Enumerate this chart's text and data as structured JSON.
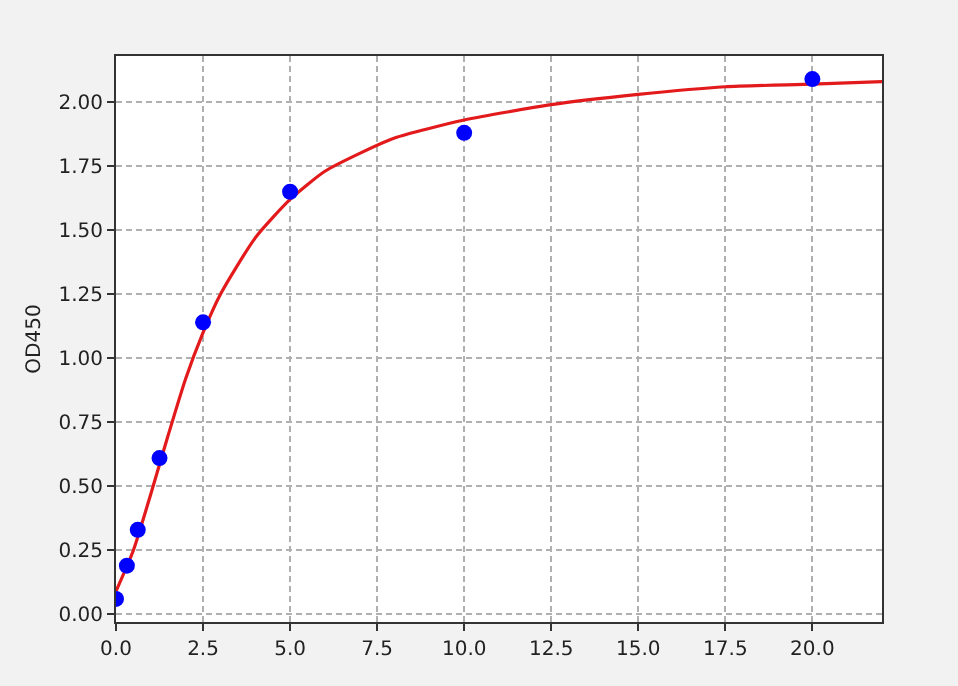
{
  "chart_data": {
    "type": "scatter",
    "ylabel": "OD450",
    "xlim": [
      0,
      22
    ],
    "ylim": [
      -0.03,
      2.18
    ],
    "xticks": [
      {
        "value": 0,
        "label": "0.0"
      },
      {
        "value": 2.5,
        "label": "2.5"
      },
      {
        "value": 5,
        "label": "5.0"
      },
      {
        "value": 7.5,
        "label": "7.5"
      },
      {
        "value": 10,
        "label": "10.0"
      },
      {
        "value": 12.5,
        "label": "12.5"
      },
      {
        "value": 15,
        "label": "15.0"
      },
      {
        "value": 17.5,
        "label": "17.5"
      },
      {
        "value": 20,
        "label": "20.0"
      }
    ],
    "yticks": [
      {
        "value": 0,
        "label": "0.00"
      },
      {
        "value": 0.25,
        "label": "0.25"
      },
      {
        "value": 0.5,
        "label": "0.50"
      },
      {
        "value": 0.75,
        "label": "0.75"
      },
      {
        "value": 1,
        "label": "1.00"
      },
      {
        "value": 1.25,
        "label": "1.25"
      },
      {
        "value": 1.5,
        "label": "1.50"
      },
      {
        "value": 1.75,
        "label": "1.75"
      },
      {
        "value": 2,
        "label": "2.00"
      }
    ],
    "grid": true,
    "series": [
      {
        "color": "#0000ff",
        "marker": "circle",
        "x": [
          0,
          0.3125,
          0.625,
          1.25,
          2.5,
          5,
          10,
          20
        ],
        "values": [
          0.06,
          0.19,
          0.33,
          0.61,
          1.14,
          1.65,
          1.88,
          2.09
        ]
      },
      {
        "type": "line",
        "color": "#e31a1c",
        "marker": "none",
        "line_style": "solid",
        "x": [
          0,
          0.5,
          1,
          1.5,
          2,
          2.5,
          3,
          4,
          5,
          6,
          7,
          8,
          10,
          12.5,
          15,
          17.5,
          20,
          22
        ],
        "values": [
          0.09,
          0.25,
          0.47,
          0.7,
          0.92,
          1.1,
          1.25,
          1.47,
          1.62,
          1.73,
          1.8,
          1.86,
          1.93,
          1.99,
          2.03,
          2.06,
          2.07,
          2.08
        ]
      }
    ]
  }
}
